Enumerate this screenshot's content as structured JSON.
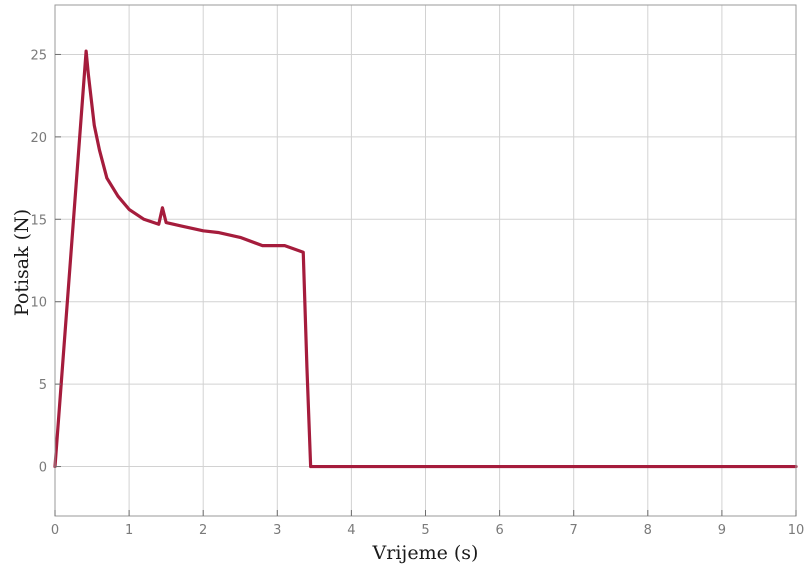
{
  "chart_data": {
    "type": "line",
    "title": "",
    "xlabel": "Vrijeme (s)",
    "ylabel": "Potisak (N)",
    "xlim": [
      0,
      10
    ],
    "ylim": [
      -3,
      28
    ],
    "xticks": [
      0,
      1,
      2,
      3,
      4,
      5,
      6,
      7,
      8,
      9,
      10
    ],
    "yticks": [
      0,
      5,
      10,
      15,
      20,
      25
    ],
    "xtick_labels": [
      "0",
      "1",
      "2",
      "3",
      "4",
      "5",
      "6",
      "7",
      "8",
      "9",
      "10"
    ],
    "ytick_labels": [
      "0",
      "5",
      "10",
      "15",
      "20",
      "25"
    ],
    "grid": true,
    "legend": false,
    "series": [
      {
        "color": "#a51c3c",
        "x": [
          0,
          0.42,
          0.45,
          0.53,
          0.6,
          0.7,
          0.85,
          1.0,
          1.2,
          1.4,
          1.45,
          1.5,
          1.7,
          2.0,
          2.2,
          2.5,
          2.8,
          3.1,
          3.35,
          3.4,
          3.45,
          4.0,
          5.0,
          6.0,
          7.0,
          8.0,
          9.0,
          10.0
        ],
        "y": [
          0,
          25.2,
          23.8,
          20.7,
          19.2,
          17.5,
          16.4,
          15.6,
          15.0,
          14.7,
          15.7,
          14.8,
          14.6,
          14.3,
          14.2,
          13.9,
          13.4,
          13.4,
          13.0,
          6.0,
          0,
          0,
          0,
          0,
          0,
          0,
          0,
          0
        ]
      }
    ]
  }
}
